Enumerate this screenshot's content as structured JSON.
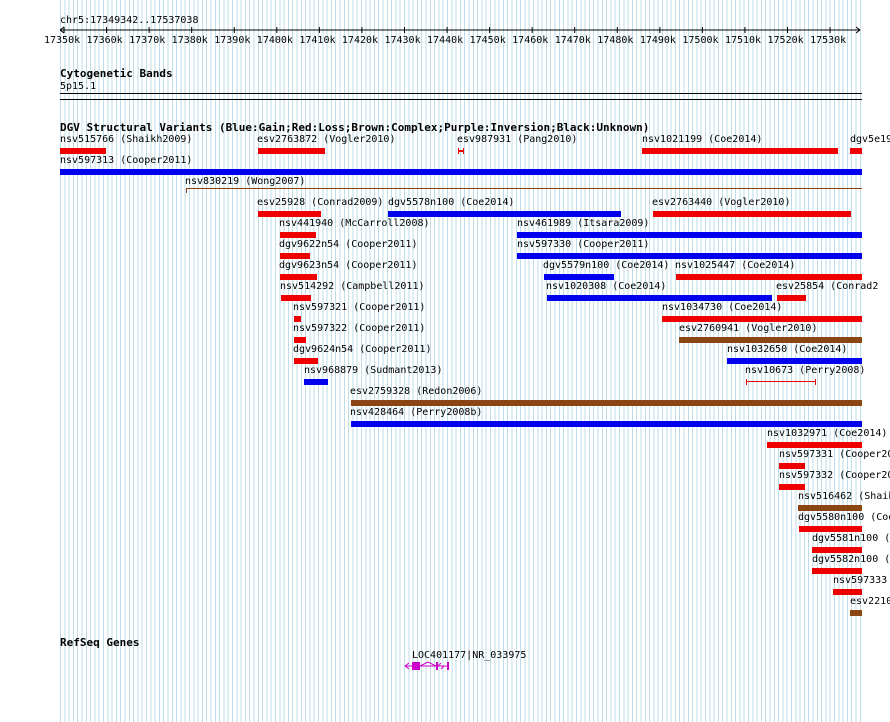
{
  "ruler": {
    "region": "chr5:17349342..17537038",
    "ticks": [
      "17350k",
      "17360k",
      "17370k",
      "17380k",
      "17390k",
      "17400k",
      "17410k",
      "17420k",
      "17430k",
      "17440k",
      "17450k",
      "17460k",
      "17470k",
      "17480k",
      "17490k",
      "17500k",
      "17510k",
      "17520k",
      "17530k"
    ]
  },
  "cytoband": {
    "title": "Cytogenetic Bands",
    "band": "5p15.1"
  },
  "dgv": {
    "title": "DGV Structural Variants (Blue:Gain;Red:Loss;Brown:Complex;Purple:Inversion;Black:Unknown)",
    "colors": {
      "gain": "#0000ee",
      "loss": "#ee0000",
      "complex": "#8b4513"
    },
    "features": [
      {
        "label": "nsv515766 (Shaikh2009)",
        "type": "loss"
      },
      {
        "label": "esv2763872 (Vogler2010)",
        "type": "loss"
      },
      {
        "label": "esv987931 (Pang2010)",
        "type": "loss"
      },
      {
        "label": "nsv1021199 (Coe2014)",
        "type": "loss"
      },
      {
        "label": "dgv5e19",
        "type": "loss"
      },
      {
        "label": "nsv597313 (Cooper2011)",
        "type": "gain"
      },
      {
        "label": "nsv830219 (Wong2007)",
        "type": "complex"
      },
      {
        "label": "esv25928 (Conrad2009)",
        "type": "loss"
      },
      {
        "label": "dgv5578n100 (Coe2014)",
        "type": "gain"
      },
      {
        "label": "esv2763440 (Vogler2010)",
        "type": "loss"
      },
      {
        "label": "nsv441940 (McCarroll2008)",
        "type": "loss"
      },
      {
        "label": "nsv461989 (Itsara2009)",
        "type": "gain"
      },
      {
        "label": "dgv9622n54 (Cooper2011)",
        "type": "loss"
      },
      {
        "label": "nsv597330 (Cooper2011)",
        "type": "gain"
      },
      {
        "label": "dgv9623n54 (Cooper2011)",
        "type": "loss"
      },
      {
        "label": "dgv5579n100 (Coe2014)",
        "type": "gain"
      },
      {
        "label": "nsv1025447 (Coe2014)",
        "type": "loss"
      },
      {
        "label": "nsv514292 (Campbell2011)",
        "type": "loss"
      },
      {
        "label": "nsv1020308 (Coe2014)",
        "type": "gain"
      },
      {
        "label": "esv25854 (Conrad2",
        "type": "loss"
      },
      {
        "label": "nsv597321 (Cooper2011)",
        "type": "loss"
      },
      {
        "label": "nsv1034730 (Coe2014)",
        "type": "loss"
      },
      {
        "label": "nsv597322 (Cooper2011)",
        "type": "loss"
      },
      {
        "label": "esv2760941 (Vogler2010)",
        "type": "complex"
      },
      {
        "label": "dgv9624n54 (Cooper2011)",
        "type": "loss"
      },
      {
        "label": "nsv1032650 (Coe2014)",
        "type": "gain"
      },
      {
        "label": "nsv968879 (Sudmant2013)",
        "type": "gain"
      },
      {
        "label": "nsv10673 (Perry2008)",
        "type": "loss"
      },
      {
        "label": "esv2759328 (Redon2006)",
        "type": "complex"
      },
      {
        "label": "nsv428464 (Perry2008b)",
        "type": "gain"
      },
      {
        "label": "nsv1032971 (Coe2014)",
        "type": "loss"
      },
      {
        "label": "nsv597331 (Cooper20",
        "type": "loss"
      },
      {
        "label": "nsv597332 (Cooper20",
        "type": "loss"
      },
      {
        "label": "nsv516462 (Shaik",
        "type": "complex"
      },
      {
        "label": "dgv5580n100 (Coe",
        "type": "loss"
      },
      {
        "label": "dgv5581n100 (Co",
        "type": "loss"
      },
      {
        "label": "dgv5582n100 (Co",
        "type": "loss"
      },
      {
        "label": "nsv597333",
        "type": "loss"
      },
      {
        "label": "esv2210",
        "type": "complex"
      }
    ]
  },
  "refseq": {
    "title": "RefSeq Genes",
    "gene": "LOC401177|NR_033975",
    "gene_color": "#cc00cc"
  }
}
